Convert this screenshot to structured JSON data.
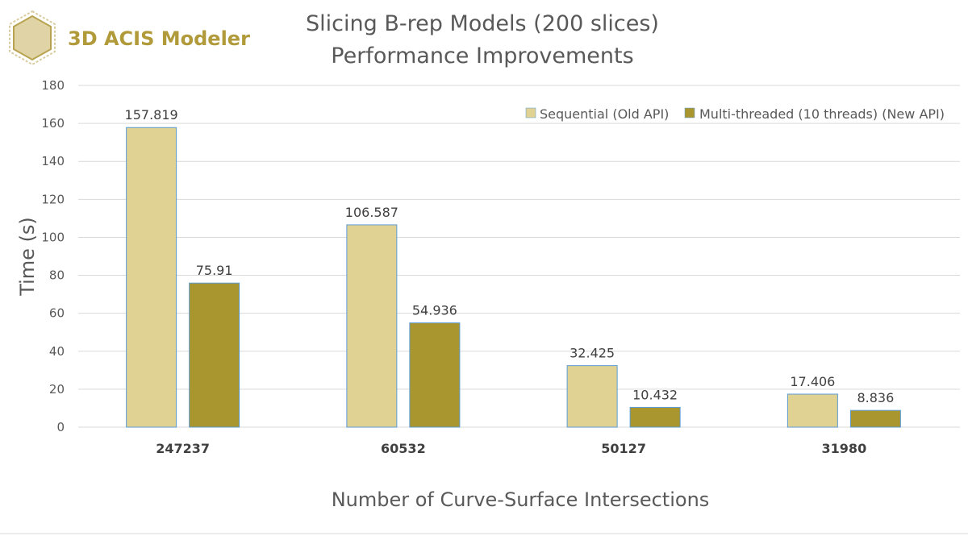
{
  "logo": {
    "text": "3D ACIS Modeler",
    "color": "#B09A3A",
    "hex_fill": "#E0D4A6",
    "hex_stroke": "#B8A450"
  },
  "chart_data": {
    "type": "bar",
    "title": [
      "Slicing B-rep Models (200 slices)",
      "Performance Improvements"
    ],
    "xlabel": "Number of Curve-Surface Intersections",
    "ylabel": "Time (s)",
    "categories": [
      "247237",
      "60532",
      "50127",
      "31980"
    ],
    "series": [
      {
        "name": "Sequential (Old API)",
        "values": [
          157.819,
          106.587,
          32.425,
          17.406
        ],
        "labels": [
          "157.819",
          "106.587",
          "32.425",
          "17.406"
        ],
        "color": "#DFD292"
      },
      {
        "name": "Multi-threaded (10 threads) (New API)",
        "values": [
          75.91,
          54.936,
          10.432,
          8.836
        ],
        "labels": [
          "75.91",
          "54.936",
          "10.432",
          "8.836"
        ],
        "color": "#AA962F"
      }
    ],
    "ylim": [
      0,
      180
    ],
    "yticks": [
      0,
      20,
      40,
      60,
      80,
      100,
      120,
      140,
      160,
      180
    ],
    "grid": true,
    "legend_position": "top-right",
    "bar_edge_color": "#5B9BD5"
  }
}
